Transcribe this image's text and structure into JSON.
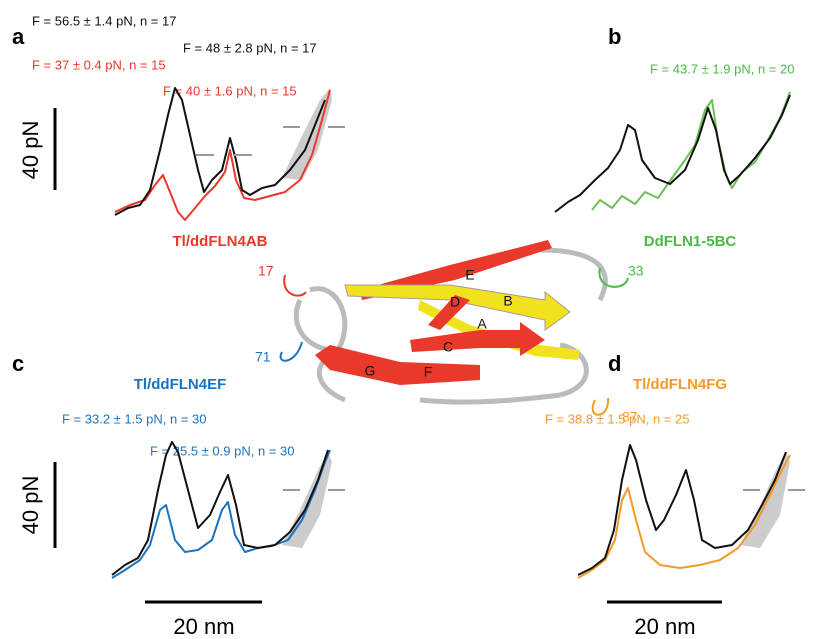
{
  "panels": [
    {
      "label": "a",
      "name": "Tl/ddFLN4AB",
      "scale_force": "40 pN",
      "forces": [
        "F = 56.5 ± 1.4 pN, n = 17",
        "F = 48 ± 2.8 pN, n = 17",
        "F = 37 ± 0.4 pN, n = 15",
        "F = 40 ± 1.6 pN, n = 15"
      ]
    },
    {
      "label": "b",
      "name": "DdFLN1-5BC",
      "forces": [
        "F = 43.7 ± 1.9 pN, n = 20"
      ]
    },
    {
      "label": "c",
      "name": "Tl/ddFLN4EF",
      "scale_force": "40 pN",
      "scale_length": "20 nm",
      "forces": [
        "F = 33.2 ± 1.5 pN, n = 30",
        "F = 25.5 ± 0.9 pN, n = 30"
      ]
    },
    {
      "label": "d",
      "name": "Tl/ddFLN4FG",
      "scale_length": "20 nm",
      "forces": [
        "F = 38.8 ± 1.5 pN, n = 25"
      ]
    }
  ],
  "structure": {
    "residues": [
      "17",
      "33",
      "71",
      "87"
    ],
    "strands": [
      "A",
      "B",
      "C",
      "D",
      "E",
      "F",
      "G"
    ]
  }
}
